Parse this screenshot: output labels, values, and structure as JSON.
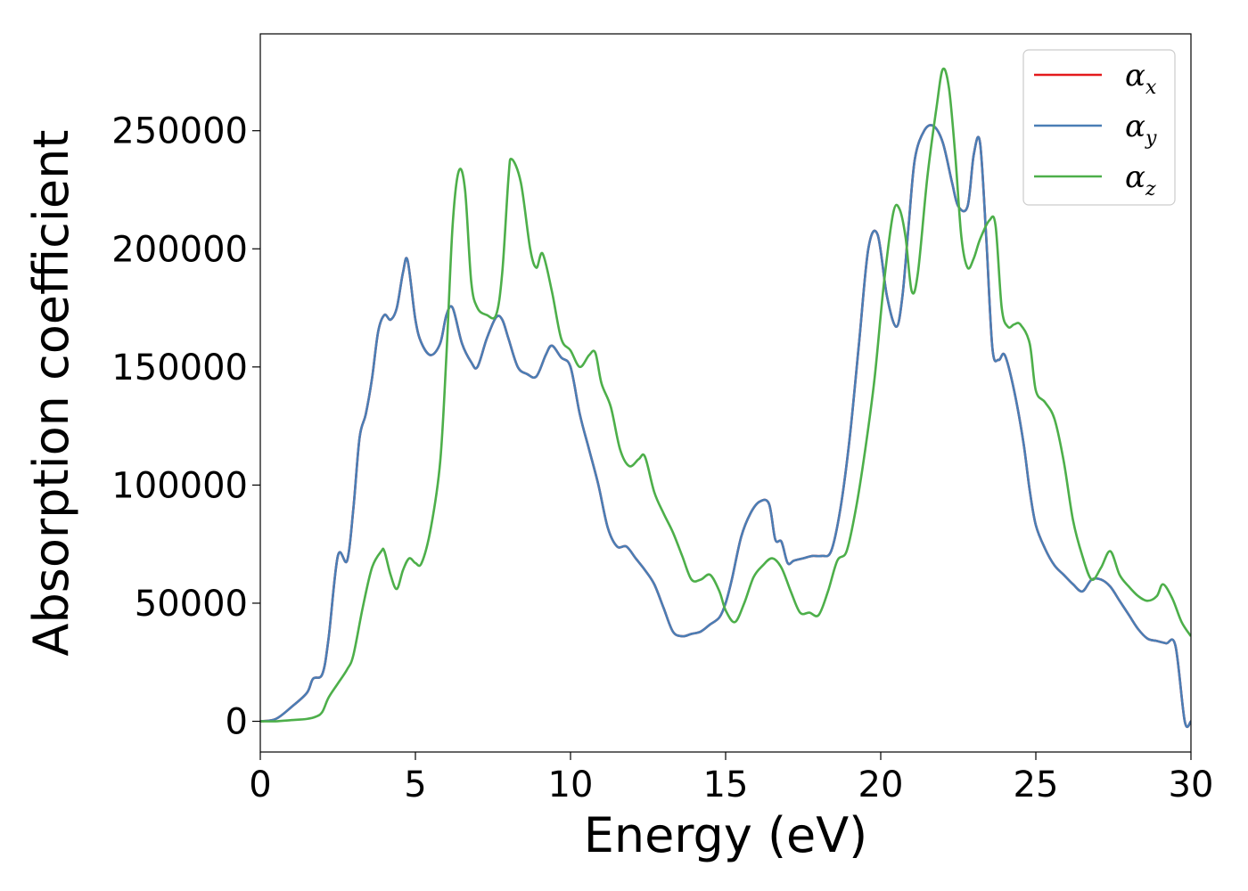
{
  "chart_data": {
    "type": "line",
    "xlabel": "Energy (eV)",
    "ylabel": "Absorption coefficient",
    "xlim": [
      0,
      30
    ],
    "ylim": [
      -13000,
      291000
    ],
    "xticks": [
      0,
      5,
      10,
      15,
      20,
      25,
      30
    ],
    "yticks": [
      0,
      50000,
      100000,
      150000,
      200000,
      250000
    ],
    "grid": false,
    "legend_position": "top-right",
    "series": [
      {
        "name": "α_x",
        "legend_base": "α",
        "legend_sub": "x",
        "color": "#e41a1c",
        "x": [
          0,
          0.5,
          1.0,
          1.5,
          1.7,
          2.0,
          2.2,
          2.5,
          2.8,
          3.0,
          3.2,
          3.4,
          3.6,
          3.8,
          4.0,
          4.2,
          4.4,
          4.6,
          4.75,
          5.0,
          5.2,
          5.5,
          5.8,
          6.0,
          6.2,
          6.5,
          6.8,
          7.0,
          7.3,
          7.6,
          7.8,
          8.0,
          8.3,
          8.6,
          8.9,
          9.2,
          9.4,
          9.7,
          10.0,
          10.3,
          10.6,
          10.9,
          11.2,
          11.5,
          11.8,
          12.1,
          12.4,
          12.7,
          13.0,
          13.3,
          13.6,
          13.9,
          14.2,
          14.5,
          14.8,
          15.0,
          15.2,
          15.5,
          15.8,
          16.1,
          16.4,
          16.6,
          16.8,
          17.0,
          17.2,
          17.5,
          17.8,
          18.1,
          18.4,
          18.7,
          19.0,
          19.3,
          19.6,
          19.9,
          20.2,
          20.5,
          20.7,
          20.9,
          21.1,
          21.4,
          21.7,
          22.0,
          22.3,
          22.5,
          22.8,
          23.0,
          23.2,
          23.4,
          23.6,
          23.8,
          24.0,
          24.3,
          24.6,
          24.8,
          25.0,
          25.3,
          25.6,
          25.9,
          26.2,
          26.5,
          26.8,
          27.1,
          27.4,
          27.7,
          28.0,
          28.3,
          28.6,
          28.9,
          29.2,
          29.5,
          29.8,
          30.0
        ],
        "y": [
          0,
          1000,
          6000,
          12000,
          18000,
          20000,
          35000,
          70000,
          68000,
          90000,
          120000,
          130000,
          145000,
          165000,
          172000,
          170000,
          175000,
          190000,
          195000,
          170000,
          160000,
          155000,
          160000,
          172000,
          175000,
          160000,
          152000,
          150000,
          162000,
          171000,
          170000,
          162000,
          150000,
          147000,
          146000,
          155000,
          159000,
          154000,
          150000,
          130000,
          115000,
          100000,
          82000,
          74000,
          74000,
          69000,
          64000,
          58000,
          48000,
          38000,
          36000,
          37000,
          38000,
          41000,
          44000,
          50000,
          60000,
          78000,
          88000,
          93000,
          92000,
          77000,
          76000,
          67000,
          68000,
          69000,
          70000,
          70000,
          72000,
          90000,
          120000,
          160000,
          200000,
          206000,
          180000,
          167000,
          180000,
          210000,
          238000,
          250000,
          252000,
          245000,
          228000,
          218000,
          218000,
          240000,
          245000,
          205000,
          158000,
          153000,
          155000,
          140000,
          118000,
          98000,
          83000,
          73000,
          66000,
          62000,
          58000,
          55000,
          60000,
          60000,
          57000,
          51000,
          45000,
          39000,
          35000,
          34000,
          33000,
          32000,
          0,
          0
        ],
        "_unused": false
      },
      {
        "name": "α_y",
        "legend_base": "α",
        "legend_sub": "y",
        "color": "#4a7eb5",
        "same_as": 0
      },
      {
        "name": "α_z",
        "legend_base": "α",
        "legend_sub": "z",
        "color": "#4daf4a",
        "x": [
          0,
          0.5,
          1.0,
          1.5,
          1.8,
          2.0,
          2.2,
          2.5,
          2.8,
          3.0,
          3.3,
          3.6,
          3.9,
          4.0,
          4.2,
          4.4,
          4.6,
          4.8,
          5.0,
          5.2,
          5.5,
          5.8,
          6.0,
          6.2,
          6.4,
          6.6,
          6.8,
          7.0,
          7.3,
          7.6,
          7.8,
          8.0,
          8.1,
          8.4,
          8.7,
          8.9,
          9.1,
          9.4,
          9.7,
          10.0,
          10.3,
          10.6,
          10.8,
          11.0,
          11.3,
          11.6,
          11.9,
          12.2,
          12.4,
          12.7,
          13.0,
          13.3,
          13.6,
          13.9,
          14.2,
          14.5,
          14.8,
          15.0,
          15.3,
          15.6,
          15.9,
          16.2,
          16.5,
          16.8,
          17.1,
          17.4,
          17.7,
          18.0,
          18.3,
          18.6,
          18.9,
          19.2,
          19.5,
          19.8,
          20.1,
          20.4,
          20.6,
          20.8,
          21.0,
          21.2,
          21.5,
          21.8,
          22.0,
          22.2,
          22.4,
          22.6,
          22.8,
          23.0,
          23.2,
          23.5,
          23.7,
          23.9,
          24.1,
          24.3,
          24.5,
          24.8,
          25.0,
          25.3,
          25.6,
          25.9,
          26.2,
          26.5,
          26.8,
          27.1,
          27.4,
          27.7,
          28.0,
          28.3,
          28.6,
          28.9,
          29.1,
          29.4,
          29.7,
          30.0
        ],
        "y": [
          0,
          0,
          500,
          1000,
          2000,
          4000,
          10000,
          16000,
          22000,
          28000,
          48000,
          65000,
          72000,
          72000,
          62000,
          56000,
          64000,
          69000,
          67000,
          67000,
          82000,
          110000,
          155000,
          210000,
          233000,
          225000,
          186000,
          175000,
          172000,
          172000,
          190000,
          230000,
          238000,
          228000,
          200000,
          192000,
          198000,
          182000,
          162000,
          157000,
          150000,
          155000,
          156000,
          143000,
          133000,
          115000,
          108000,
          111000,
          112000,
          97000,
          88000,
          80000,
          70000,
          60000,
          60000,
          62000,
          55000,
          47000,
          42000,
          50000,
          61000,
          66000,
          69000,
          65000,
          55000,
          46000,
          46000,
          45000,
          55000,
          68000,
          72000,
          90000,
          115000,
          145000,
          185000,
          215000,
          217000,
          205000,
          182000,
          190000,
          230000,
          260000,
          276000,
          268000,
          240000,
          205000,
          192000,
          196000,
          204000,
          212000,
          210000,
          175000,
          167000,
          168000,
          168000,
          160000,
          140000,
          135000,
          128000,
          110000,
          85000,
          70000,
          60000,
          65000,
          72000,
          62000,
          57000,
          53000,
          51000,
          53000,
          58000,
          52000,
          42000,
          36000
        ],
        "_unused": false
      }
    ]
  }
}
